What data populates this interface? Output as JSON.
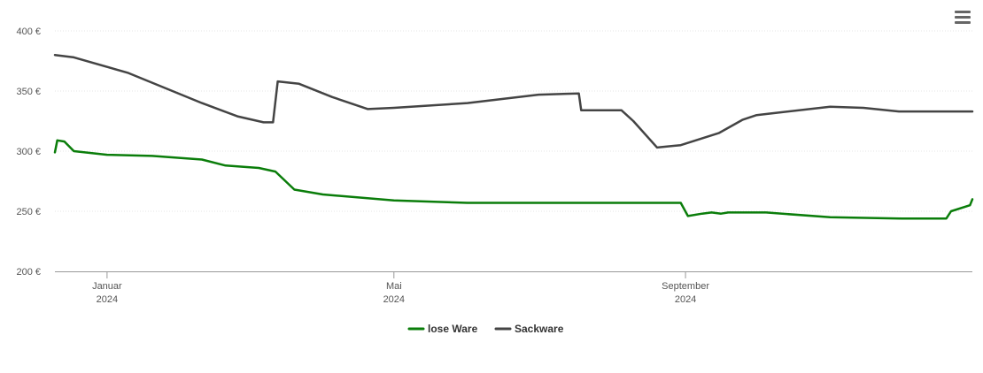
{
  "chart_data": {
    "type": "line",
    "title": "",
    "xlabel": "",
    "ylabel": "",
    "ylim": [
      200,
      400
    ],
    "xlim": [
      "2023-12-10",
      "2024-12-31"
    ],
    "yticks": [
      {
        "value": 400,
        "label": "400 €"
      },
      {
        "value": 350,
        "label": "350 €"
      },
      {
        "value": 300,
        "label": "300 €"
      },
      {
        "value": 250,
        "label": "250 €"
      },
      {
        "value": 200,
        "label": "200 €"
      }
    ],
    "xticks": [
      {
        "date": "2024-01-01",
        "month": "Januar",
        "year": "2024"
      },
      {
        "date": "2024-05-01",
        "month": "Mai",
        "year": "2024"
      },
      {
        "date": "2024-09-01",
        "month": "September",
        "year": "2024"
      }
    ],
    "grid": "horizontal",
    "legend_position": "bottom-center",
    "series": [
      {
        "name": "lose Ware",
        "color": "#0a7d0a",
        "points": [
          [
            "2023-12-10",
            299
          ],
          [
            "2023-12-11",
            309
          ],
          [
            "2023-12-14",
            308
          ],
          [
            "2023-12-18",
            300
          ],
          [
            "2024-01-01",
            297
          ],
          [
            "2024-01-20",
            296
          ],
          [
            "2024-02-10",
            293
          ],
          [
            "2024-02-20",
            288
          ],
          [
            "2024-03-05",
            286
          ],
          [
            "2024-03-12",
            283
          ],
          [
            "2024-03-20",
            268
          ],
          [
            "2024-04-01",
            264
          ],
          [
            "2024-05-01",
            259
          ],
          [
            "2024-06-01",
            257
          ],
          [
            "2024-07-01",
            257
          ],
          [
            "2024-08-30",
            257
          ],
          [
            "2024-09-02",
            246
          ],
          [
            "2024-09-08",
            248
          ],
          [
            "2024-09-12",
            249
          ],
          [
            "2024-09-16",
            248
          ],
          [
            "2024-09-19",
            249
          ],
          [
            "2024-10-05",
            249
          ],
          [
            "2024-11-01",
            245
          ],
          [
            "2024-12-01",
            244
          ],
          [
            "2024-12-20",
            244
          ],
          [
            "2024-12-22",
            250
          ],
          [
            "2024-12-30",
            255
          ],
          [
            "2024-12-31",
            260
          ]
        ]
      },
      {
        "name": "Sackware",
        "color": "#444444",
        "points": [
          [
            "2023-12-10",
            380
          ],
          [
            "2023-12-18",
            378
          ],
          [
            "2024-01-10",
            365
          ],
          [
            "2024-02-10",
            340
          ],
          [
            "2024-02-25",
            329
          ],
          [
            "2024-03-07",
            324
          ],
          [
            "2024-03-11",
            324
          ],
          [
            "2024-03-13",
            358
          ],
          [
            "2024-03-22",
            356
          ],
          [
            "2024-04-05",
            345
          ],
          [
            "2024-04-20",
            335
          ],
          [
            "2024-05-01",
            336
          ],
          [
            "2024-06-01",
            340
          ],
          [
            "2024-07-01",
            347
          ],
          [
            "2024-07-18",
            348
          ],
          [
            "2024-07-19",
            334
          ],
          [
            "2024-08-05",
            334
          ],
          [
            "2024-08-10",
            325
          ],
          [
            "2024-08-20",
            303
          ],
          [
            "2024-08-30",
            305
          ],
          [
            "2024-09-15",
            315
          ],
          [
            "2024-09-25",
            326
          ],
          [
            "2024-10-01",
            330
          ],
          [
            "2024-11-01",
            337
          ],
          [
            "2024-11-15",
            336
          ],
          [
            "2024-11-30",
            333
          ],
          [
            "2024-12-31",
            333
          ]
        ]
      }
    ]
  },
  "toolbar": {
    "menu_icon": "hamburger-menu-icon"
  }
}
